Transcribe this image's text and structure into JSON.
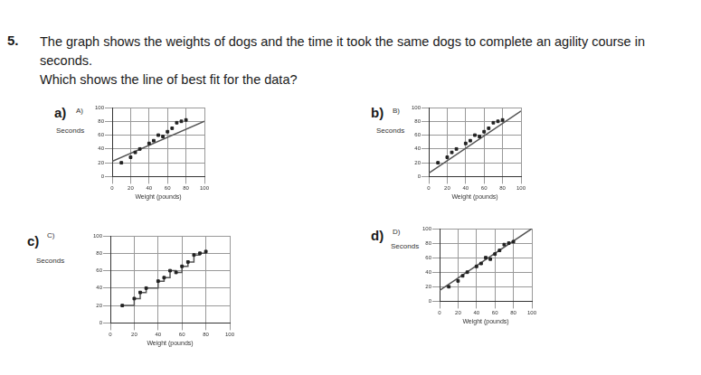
{
  "question": {
    "number": "5.",
    "text": "The graph shows the weights of dogs and the time it took the same dogs to complete an agility course in seconds.",
    "prompt": "Which shows the line of best fit for the data?"
  },
  "chart_data": [
    {
      "type": "scatter",
      "option": "a)",
      "title": "A)",
      "x_label": "Weight (pounds)",
      "y_label": "Seconds",
      "xlim": [
        0,
        100
      ],
      "xticks": [
        0,
        20,
        40,
        60,
        80,
        100
      ],
      "ylim": [
        0,
        100
      ],
      "yticks": [
        0,
        20,
        40,
        60,
        80,
        100
      ],
      "grid": true,
      "series": [
        {
          "type": "scatter",
          "color": "#222222",
          "marker": "square",
          "x": [
            10,
            20,
            25,
            30,
            40,
            45,
            50,
            55,
            60,
            65,
            70,
            75,
            80
          ],
          "values": [
            20,
            28,
            35,
            40,
            48,
            52,
            60,
            58,
            65,
            70,
            78,
            80,
            82
          ]
        },
        {
          "type": "line",
          "color": "#555555",
          "line_style": "solid",
          "x": [
            0,
            100
          ],
          "values": [
            22,
            80
          ]
        }
      ]
    },
    {
      "type": "scatter",
      "option": "b)",
      "title": "B)",
      "x_label": "Weight (pounds)",
      "y_label": "Seconds",
      "xlim": [
        0,
        100
      ],
      "xticks": [
        0,
        20,
        40,
        60,
        80,
        100
      ],
      "ylim": [
        0,
        100
      ],
      "yticks": [
        0,
        20,
        40,
        60,
        80,
        100
      ],
      "grid": true,
      "series": [
        {
          "type": "scatter",
          "color": "#222222",
          "marker": "square",
          "x": [
            10,
            20,
            25,
            30,
            40,
            45,
            50,
            55,
            60,
            65,
            70,
            75,
            80
          ],
          "values": [
            20,
            28,
            35,
            40,
            48,
            52,
            60,
            58,
            65,
            70,
            78,
            80,
            82
          ]
        },
        {
          "type": "line",
          "color": "#555555",
          "line_style": "solid",
          "x": [
            0,
            100
          ],
          "values": [
            5,
            95
          ]
        }
      ]
    },
    {
      "type": "scatter",
      "option": "c)",
      "title": "C)",
      "x_label": "Weight (pounds)",
      "y_label": "Seconds",
      "xlim": [
        0,
        100
      ],
      "xticks": [
        0,
        20,
        40,
        60,
        80,
        100
      ],
      "ylim": [
        0,
        100
      ],
      "yticks": [
        0,
        20,
        40,
        60,
        80,
        100
      ],
      "grid": true,
      "series": [
        {
          "type": "scatter",
          "color": "#222222",
          "marker": "square",
          "x": [
            10,
            20,
            25,
            30,
            40,
            45,
            50,
            55,
            60,
            65,
            70,
            75,
            80
          ],
          "values": [
            20,
            28,
            35,
            40,
            48,
            52,
            60,
            58,
            65,
            70,
            78,
            80,
            82
          ]
        },
        {
          "type": "line",
          "color": "#555555",
          "line_style": "stepped",
          "x": [
            10,
            20,
            25,
            30,
            40,
            45,
            50,
            55,
            60,
            65,
            70,
            75,
            80
          ],
          "values": [
            20,
            28,
            35,
            40,
            48,
            52,
            60,
            58,
            65,
            70,
            78,
            80,
            82
          ]
        }
      ]
    },
    {
      "type": "scatter",
      "option": "d)",
      "title": "D)",
      "x_label": "Weight (pounds)",
      "y_label": "Seconds",
      "xlim": [
        0,
        100
      ],
      "xticks": [
        0,
        20,
        40,
        60,
        80,
        100
      ],
      "ylim": [
        0,
        100
      ],
      "yticks": [
        0,
        20,
        40,
        60,
        80,
        100
      ],
      "grid": true,
      "series": [
        {
          "type": "scatter",
          "color": "#222222",
          "marker": "square",
          "x": [
            10,
            20,
            25,
            30,
            40,
            45,
            50,
            55,
            60,
            65,
            70,
            75,
            80
          ],
          "values": [
            20,
            28,
            35,
            40,
            48,
            52,
            60,
            58,
            65,
            70,
            78,
            80,
            82
          ]
        },
        {
          "type": "line",
          "color": "#555555",
          "line_style": "solid",
          "x": [
            0,
            100
          ],
          "values": [
            15,
            100
          ]
        }
      ]
    }
  ]
}
